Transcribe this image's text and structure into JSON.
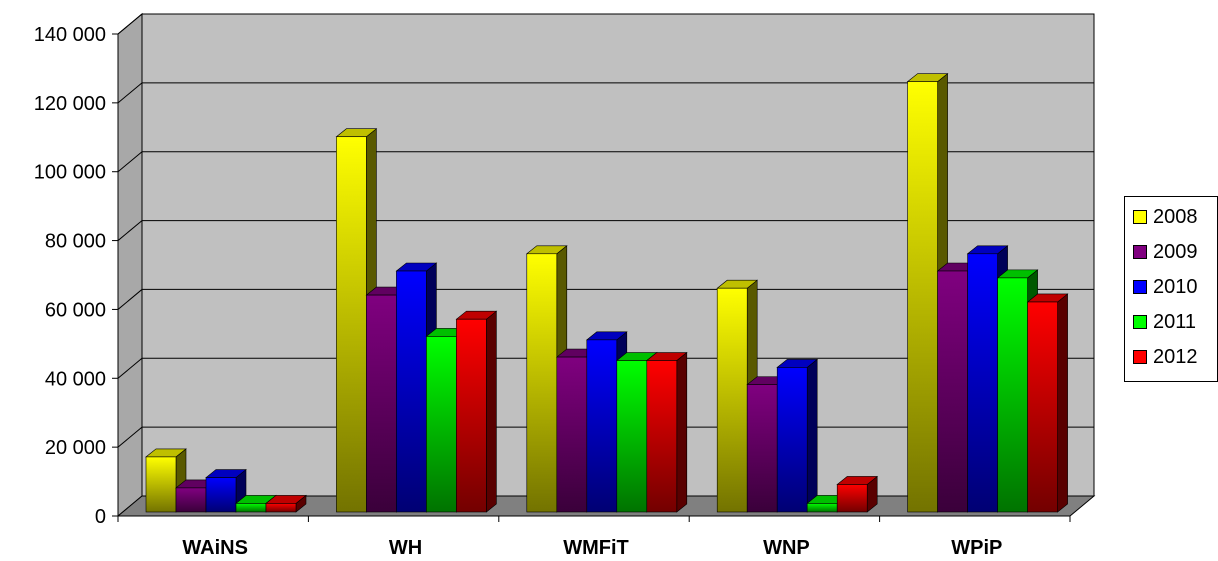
{
  "chart_data": {
    "type": "bar",
    "categories": [
      "WAiNS",
      "WH",
      "WMFiT",
      "WNP",
      "WPiP"
    ],
    "series": [
      {
        "name": "2008",
        "color": "#FFFF00",
        "values": [
          16000,
          109000,
          75000,
          65000,
          125000
        ]
      },
      {
        "name": "2009",
        "color": "#800080",
        "values": [
          7000,
          63000,
          45000,
          37000,
          70000
        ]
      },
      {
        "name": "2010",
        "color": "#0000FF",
        "values": [
          10000,
          70000,
          50000,
          42000,
          75000
        ]
      },
      {
        "name": "2011",
        "color": "#00FF00",
        "values": [
          2500,
          51000,
          44000,
          2500,
          68000
        ]
      },
      {
        "name": "2012",
        "color": "#FF0000",
        "values": [
          2500,
          56000,
          44000,
          8000,
          61000
        ]
      }
    ],
    "yticks": [
      "0",
      "20 000",
      "40 000",
      "60 000",
      "80 000",
      "100 000",
      "120 000",
      "140 000"
    ],
    "ylim": [
      0,
      140000
    ],
    "grid": true,
    "legend": "right",
    "plot_background": "#C0C0C0"
  }
}
